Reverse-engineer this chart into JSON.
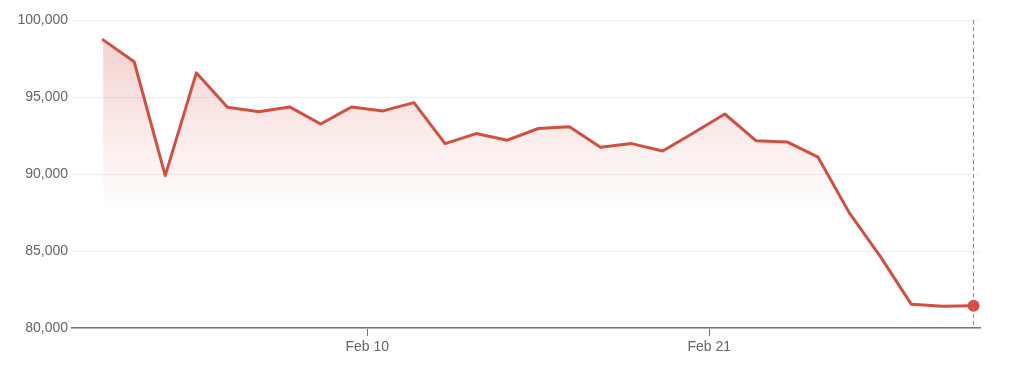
{
  "chart_data": {
    "type": "area",
    "x": [
      "--02-01T12:00",
      "--02-02T12:00",
      "--02-03T12:00",
      "--02-04T12:00",
      "--02-05T12:00",
      "--02-06T12:00",
      "--02-07T12:00",
      "--02-08T12:00",
      "--02-09T12:00",
      "--02-10T12:00",
      "--02-11T12:00",
      "--02-12T12:00",
      "--02-13T12:00",
      "--02-14T12:00",
      "--02-15T12:00",
      "--02-16T12:00",
      "--02-17T12:00",
      "--02-18T12:00",
      "--02-19T12:00",
      "--02-20T12:00",
      "--02-21T12:00",
      "--02-22T12:00",
      "--02-23T12:00",
      "--02-24T12:00",
      "--02-25T12:00",
      "--02-26T12:00",
      "--02-27T12:00",
      "--02-28T12:00",
      "--03-01T12:00"
    ],
    "series": [
      {
        "type": "area",
        "color": "#d24f41",
        "marker": "none",
        "values": [
          98710,
          97290,
          89900,
          96570,
          94340,
          94050,
          94360,
          93250,
          94360,
          94100,
          94640,
          91980,
          92630,
          92200,
          92960,
          93070,
          91740,
          91980,
          91500,
          92680,
          93900,
          92170,
          92090,
          91100,
          87500,
          84660,
          81550,
          81420,
          81460
        ]
      },
      {
        "type": "scatter",
        "color": "#d24f41",
        "marker": "circle",
        "x": [
          "--03-01T12:00"
        ],
        "values": [
          81460
        ]
      }
    ],
    "xlim": [
      "--01-31T12:00",
      "--03-01T17:00"
    ],
    "xticks": [
      {
        "value": "--02-10",
        "label": "Feb 10"
      },
      {
        "value": "--02-21",
        "label": "Feb 21"
      }
    ],
    "ylim": [
      80000,
      100000
    ],
    "yticks": [
      {
        "value": 80000,
        "label": "80,000"
      },
      {
        "value": 85000,
        "label": "85,000"
      },
      {
        "value": 90000,
        "label": "90,000"
      },
      {
        "value": 95000,
        "label": "95,000"
      },
      {
        "value": 100000,
        "label": "100,000"
      }
    ],
    "grid": "y",
    "ref_lines": [
      {
        "axis": "x",
        "value": "--03-01T12:00",
        "color": "#888888",
        "line_style": "dashed"
      }
    ]
  }
}
